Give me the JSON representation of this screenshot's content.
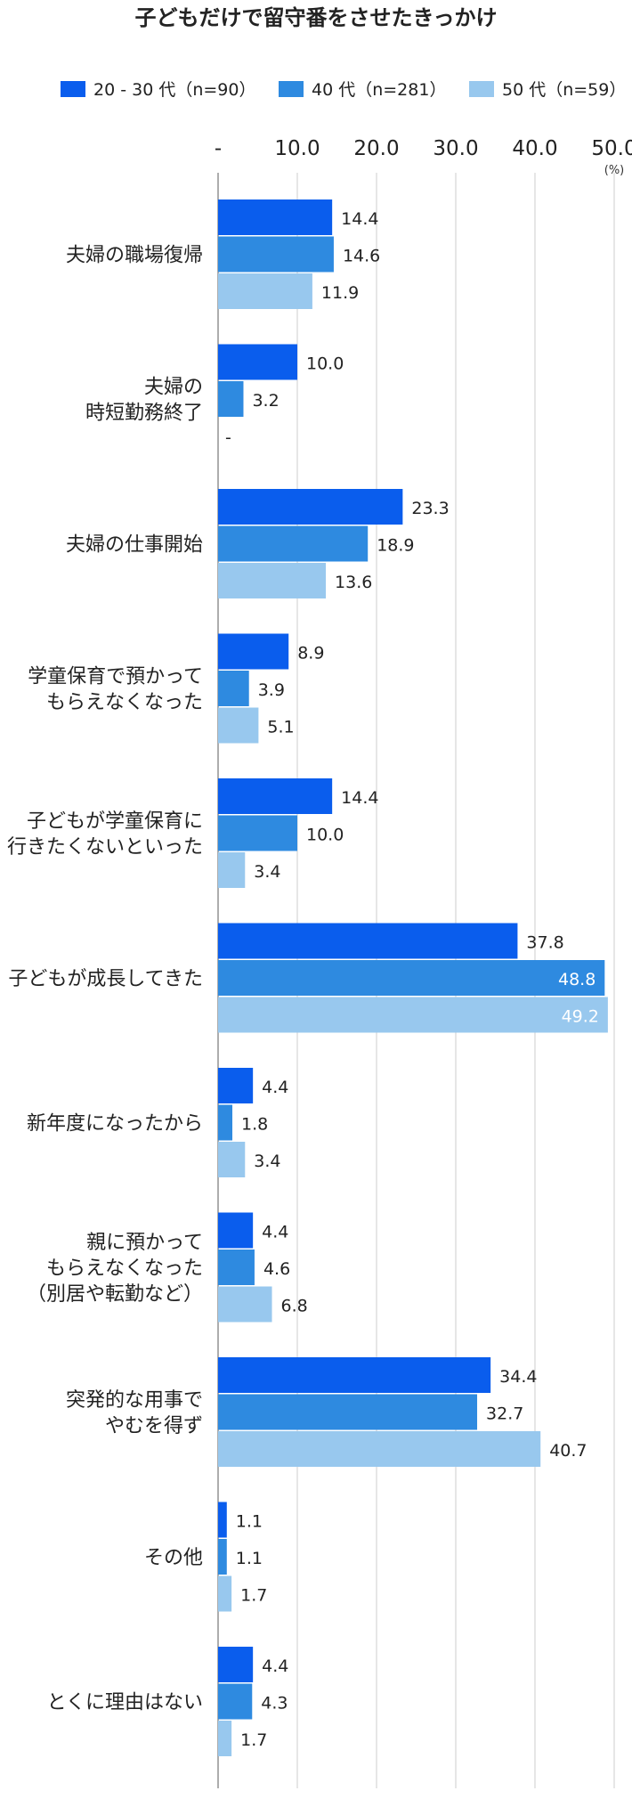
{
  "chart_data": {
    "type": "bar",
    "orientation": "horizontal",
    "title": "子どもだけで留守番をさせたきっかけ",
    "unit": "(%)",
    "xlim": [
      0,
      50
    ],
    "ticks": [
      {
        "value": 0,
        "label": "-"
      },
      {
        "value": 10,
        "label": "10.0"
      },
      {
        "value": 20,
        "label": "20.0"
      },
      {
        "value": 30,
        "label": "30.0"
      },
      {
        "value": 40,
        "label": "40.0"
      },
      {
        "value": 50,
        "label": "50.0"
      }
    ],
    "grid": true,
    "legend_position": "top",
    "categories": [
      [
        "夫婦の職場復帰"
      ],
      [
        "夫婦の",
        "時短勤務終了"
      ],
      [
        "夫婦の仕事開始"
      ],
      [
        "学童保育で預かって",
        "もらえなくなった"
      ],
      [
        "子どもが学童保育に",
        "行きたくないといった"
      ],
      [
        "子どもが成長してきた"
      ],
      [
        "新年度になったから"
      ],
      [
        "親に預かって",
        "もらえなくなった",
        "（別居や転勤など）"
      ],
      [
        "突発的な用事で",
        "やむを得ず"
      ],
      [
        "その他"
      ],
      [
        "とくに理由はない"
      ]
    ],
    "series": [
      {
        "name": "20 - 30 代（n=90）",
        "color": "#0a5ded",
        "values": [
          14.4,
          10.0,
          23.3,
          8.9,
          14.4,
          37.8,
          4.4,
          4.4,
          34.4,
          1.1,
          4.4
        ],
        "labels": [
          "14.4",
          "10.0",
          "23.3",
          "8.9",
          "14.4",
          "37.8",
          "4.4",
          "4.4",
          "34.4",
          "1.1",
          "4.4"
        ]
      },
      {
        "name": "40 代（n=281）",
        "color": "#2e8ae0",
        "values": [
          14.6,
          3.2,
          18.9,
          3.9,
          10.0,
          48.8,
          1.8,
          4.6,
          32.7,
          1.1,
          4.3
        ],
        "labels": [
          "14.6",
          "3.2",
          "18.9",
          "3.9",
          "10.0",
          "48.8",
          "1.8",
          "4.6",
          "32.7",
          "1.1",
          "4.3"
        ]
      },
      {
        "name": "50 代（n=59）",
        "color": "#98c8ee",
        "values": [
          11.9,
          0,
          13.6,
          5.1,
          3.4,
          49.2,
          3.4,
          6.8,
          40.7,
          1.7,
          1.7
        ],
        "labels": [
          "11.9",
          "-",
          "13.6",
          "5.1",
          "3.4",
          "49.2",
          "3.4",
          "6.8",
          "40.7",
          "1.7",
          "1.7"
        ]
      }
    ]
  }
}
